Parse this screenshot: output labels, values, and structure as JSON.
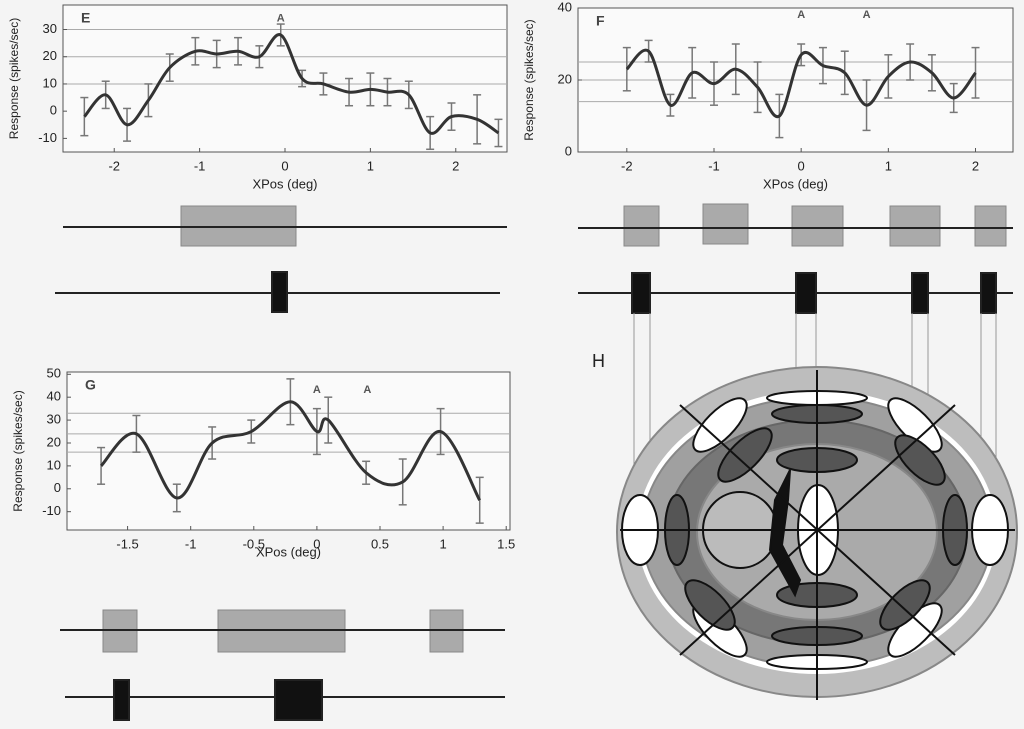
{
  "chart_data": [
    {
      "type": "line",
      "title": "E",
      "x_label": "XPos (deg)",
      "y_label": "Response (spikes/sec)",
      "x": [
        -2.35,
        -2.1,
        -1.85,
        -1.6,
        -1.35,
        -1.05,
        -0.8,
        -0.55,
        -0.3,
        -0.05,
        0.2,
        0.45,
        0.75,
        1.0,
        1.2,
        1.45,
        1.7,
        1.95,
        2.25,
        2.5
      ],
      "series": [
        {
          "color": "#333333",
          "values": [
            -2,
            6,
            -5,
            4,
            16,
            22,
            21,
            22,
            20,
            28,
            12,
            10,
            7,
            8,
            7,
            6,
            -8,
            -2,
            -3,
            -8
          ],
          "errors": [
            7,
            5,
            6,
            6,
            5,
            5,
            5,
            5,
            4,
            4,
            3,
            4,
            5,
            6,
            5,
            5,
            6,
            5,
            9,
            5
          ]
        }
      ],
      "hlines": [
        30,
        20,
        10
      ],
      "annotations": [
        {
          "text": "A",
          "x": -0.05,
          "y": 34
        }
      ],
      "xlim": [
        -2.6,
        2.6
      ],
      "ylim": [
        -15,
        39
      ],
      "xticks": [
        -2,
        -1,
        0,
        1,
        2
      ],
      "yticks": [
        -10,
        0,
        10,
        20,
        30
      ]
    },
    {
      "type": "line",
      "title": "F",
      "x_label": "XPos (deg)",
      "y_label": "Response (spikes/sec)",
      "x": [
        -2,
        -1.75,
        -1.5,
        -1.25,
        -1.0,
        -0.75,
        -0.5,
        -0.25,
        0,
        0.25,
        0.5,
        0.75,
        1.0,
        1.25,
        1.5,
        1.75,
        2.0
      ],
      "series": [
        {
          "color": "#333333",
          "values": [
            23,
            28,
            13,
            22,
            19,
            23,
            18,
            10,
            27,
            24,
            22,
            13,
            21,
            25,
            22,
            15,
            22
          ],
          "errors": [
            6,
            3,
            3,
            7,
            6,
            7,
            7,
            6,
            3,
            5,
            6,
            7,
            6,
            5,
            5,
            4,
            7
          ]
        }
      ],
      "hlines": [
        25,
        20,
        14
      ],
      "annotations": [
        {
          "text": "A",
          "x": 0,
          "y": 38
        },
        {
          "text": "A",
          "x": 0.75,
          "y": 38
        }
      ],
      "xlim": [
        -2.56,
        2.43
      ],
      "ylim": [
        0,
        40
      ],
      "xticks": [
        -2,
        -1,
        0,
        1,
        2
      ],
      "yticks": [
        0,
        20,
        40
      ]
    },
    {
      "type": "line",
      "title": "G",
      "x_label": "XPos (deg)",
      "y_label": "Response (spikes/sec)",
      "x": [
        -1.71,
        -1.43,
        -1.11,
        -0.83,
        -0.52,
        -0.21,
        0,
        0.09,
        0.39,
        0.68,
        0.98,
        1.29
      ],
      "series": [
        {
          "color": "#333333",
          "values": [
            10,
            24,
            -4,
            20,
            25,
            38,
            25,
            30,
            7,
            3,
            25,
            -5
          ],
          "errors": [
            8,
            8,
            6,
            7,
            5,
            10,
            10,
            10,
            5,
            10,
            10,
            10
          ]
        }
      ],
      "hlines": [
        33,
        24,
        16
      ],
      "annotations": [
        {
          "text": "A",
          "x": 0,
          "y": 43
        },
        {
          "text": "A",
          "x": 0.4,
          "y": 43
        }
      ],
      "xlim": [
        -1.98,
        1.53
      ],
      "ylim": [
        -18,
        51
      ],
      "xticks": [
        -1.5,
        -1,
        -0.5,
        0,
        0.5,
        1,
        1.5
      ],
      "yticks": [
        -10,
        0,
        10,
        20,
        30,
        40,
        50
      ]
    }
  ],
  "diagram": {
    "label": "H"
  }
}
